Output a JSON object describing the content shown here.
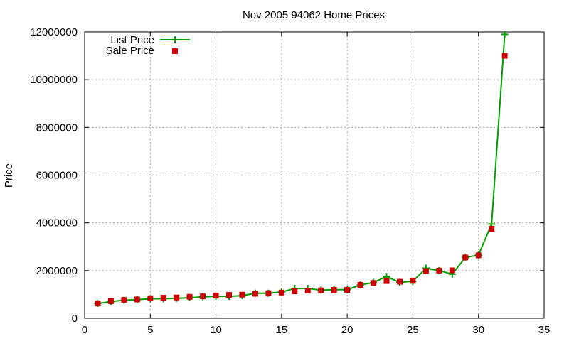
{
  "chart_data": {
    "type": "line",
    "title": "Nov 2005 94062 Home Prices",
    "xlabel": "",
    "ylabel": "Price",
    "xlim": [
      0,
      35
    ],
    "ylim": [
      0,
      12000000
    ],
    "xticks": [
      0,
      5,
      10,
      15,
      20,
      25,
      30,
      35
    ],
    "yticks": [
      0,
      2000000,
      4000000,
      6000000,
      8000000,
      10000000,
      12000000
    ],
    "grid": true,
    "legend_position": "top-left",
    "series": [
      {
        "name": "List Price",
        "style": "line-plus",
        "color": "#00a000",
        "x": [
          1,
          2,
          3,
          4,
          5,
          6,
          7,
          8,
          9,
          10,
          11,
          12,
          13,
          14,
          15,
          16,
          17,
          18,
          19,
          20,
          21,
          22,
          23,
          24,
          25,
          26,
          27,
          28,
          29,
          30,
          31,
          32
        ],
        "values": [
          620000,
          700000,
          760000,
          780000,
          820000,
          820000,
          840000,
          860000,
          900000,
          920000,
          920000,
          950000,
          1050000,
          1050000,
          1100000,
          1250000,
          1250000,
          1180000,
          1200000,
          1200000,
          1400000,
          1500000,
          1750000,
          1500000,
          1550000,
          2100000,
          2000000,
          1850000,
          2550000,
          2650000,
          3950000,
          11900000
        ]
      },
      {
        "name": "Sale Price",
        "style": "square-marker",
        "color": "#cc0000",
        "x": [
          1,
          2,
          3,
          4,
          5,
          6,
          7,
          8,
          9,
          10,
          11,
          12,
          13,
          14,
          15,
          16,
          17,
          18,
          19,
          20,
          21,
          22,
          23,
          24,
          25,
          26,
          27,
          28,
          29,
          30,
          31,
          32
        ],
        "values": [
          620000,
          720000,
          770000,
          790000,
          840000,
          860000,
          870000,
          900000,
          920000,
          950000,
          980000,
          990000,
          1030000,
          1050000,
          1080000,
          1130000,
          1160000,
          1170000,
          1190000,
          1190000,
          1400000,
          1480000,
          1560000,
          1530000,
          1570000,
          1980000,
          2000000,
          2010000,
          2550000,
          2640000,
          3750000,
          11000000
        ]
      }
    ]
  }
}
